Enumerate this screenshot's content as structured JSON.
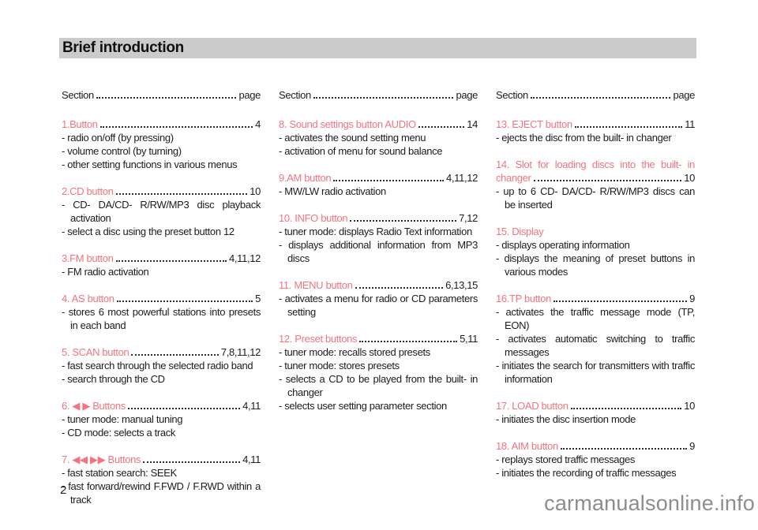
{
  "page": {
    "title": "Brief introduction",
    "page_number": "2",
    "watermark": "carmanualsonline.info",
    "heading_color": "#f3747f",
    "title_bar_color": "#cbcbcb"
  },
  "columns": [
    {
      "header": {
        "label": "Section",
        "page_label": "page"
      },
      "entries": [
        {
          "heading": "1.Button",
          "page": "4",
          "items": [
            "radio on/off (by pressing)",
            "volume control (by turning)",
            "other setting functions in various menus"
          ]
        },
        {
          "heading": "2.CD button",
          "page": "10",
          "items": [
            "CD- DA/CD- R/RW/MP3 disc playback activation",
            "select a disc using the preset button 12"
          ]
        },
        {
          "heading": "3.FM button",
          "page": "4,11,12",
          "items": [
            "FM radio activation"
          ]
        },
        {
          "heading": "4. AS button",
          "page": "5",
          "items": [
            "stores 6 most powerful stations into presets in each band"
          ]
        },
        {
          "heading": "5. SCAN button",
          "page": "7,8,11,12",
          "items": [
            "fast search through the selected radio band",
            "search through the CD"
          ]
        },
        {
          "heading": "6. ◀  ▶ Buttons",
          "page": "4,11",
          "items": [
            "tuner mode: manual tuning",
            "CD mode: selects a track"
          ]
        },
        {
          "heading": "7. ◀◀ ▶▶ Buttons",
          "page": "4,11",
          "items": [
            "fast station search: SEEK",
            "fast forward/rewind F.FWD / F.RWD within a track"
          ]
        }
      ]
    },
    {
      "header": {
        "label": "Section",
        "page_label": "page"
      },
      "entries": [
        {
          "heading": "8. Sound settings button AUDIO",
          "page": "14",
          "items": [
            "activates the sound setting menu",
            "activation of menu for sound balance"
          ]
        },
        {
          "heading": "9.AM button",
          "page": "4,11,12",
          "items": [
            "MW/LW radio activation"
          ]
        },
        {
          "heading": "10. INFO button",
          "page": "7,12",
          "items": [
            "tuner mode: displays Radio Text information",
            "displays additional information from MP3 discs"
          ]
        },
        {
          "heading": "11. MENU button",
          "page": "6,13,15",
          "items": [
            "activates a menu for radio or CD parameters setting"
          ]
        },
        {
          "heading": "12. Preset buttons",
          "page": "5,11",
          "items": [
            "tuner mode: recalls stored presets",
            "tuner mode: stores presets",
            "selects a CD to be played from the built- in changer",
            "selects user setting parameter section"
          ]
        }
      ]
    },
    {
      "header": {
        "label": "Section",
        "page_label": "page"
      },
      "entries": [
        {
          "heading": "13. EJECT button",
          "page": "11",
          "items": [
            "ejects the disc from the built- in changer"
          ]
        },
        {
          "heading": "14. Slot for loading discs into the built- in",
          "heading2": "changer",
          "page": "10",
          "items": [
            "up to 6 CD- DA/CD- R/RW/MP3 discs can be inserted"
          ]
        },
        {
          "heading": "15. Display",
          "page": null,
          "items": [
            "displays operating information",
            "displays the meaning of preset buttons in various modes"
          ]
        },
        {
          "heading": "16.TP button",
          "page": "9",
          "items": [
            "activates the traffic message mode (TP, EON)",
            "activates automatic switching to traffic messages",
            "initiates the search for transmitters with traffic information"
          ]
        },
        {
          "heading": "17. LOAD button",
          "page": "10",
          "items": [
            "initiates the disc insertion mode"
          ]
        },
        {
          "heading": "18. AIM button",
          "page": "9",
          "items": [
            "replays stored traffic messages",
            "initiates the recording of traffic messages"
          ]
        }
      ]
    }
  ]
}
